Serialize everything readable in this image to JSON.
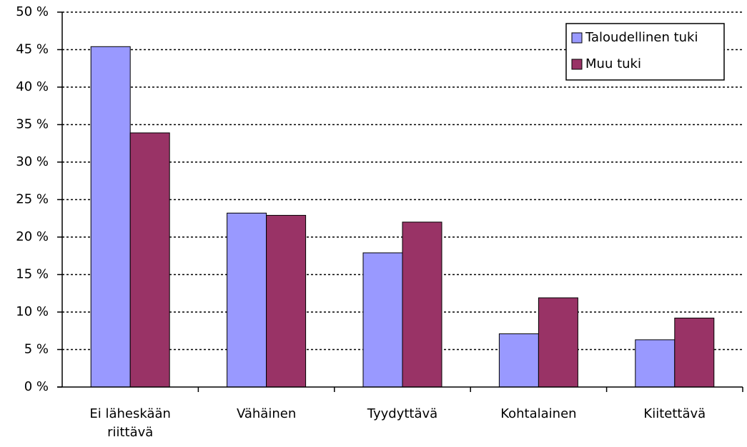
{
  "chart_data": {
    "type": "bar",
    "categories": [
      "Ei läheskään riittävä",
      "Vähäinen",
      "Tyydyttävä",
      "Kohtalainen",
      "Kiitettävä"
    ],
    "series": [
      {
        "name": "Taloudellinen tuki",
        "color": "#9999ff",
        "values": [
          45.4,
          23.2,
          17.9,
          7.1,
          6.3
        ]
      },
      {
        "name": "Muu tuki",
        "color": "#993366",
        "values": [
          33.9,
          22.9,
          22.0,
          11.9,
          9.2
        ]
      }
    ],
    "ylim": [
      0,
      50
    ],
    "yticks": [
      {
        "value": 0,
        "label": "0 %"
      },
      {
        "value": 5,
        "label": "5 %"
      },
      {
        "value": 10,
        "label": "10 %"
      },
      {
        "value": 15,
        "label": "15 %"
      },
      {
        "value": 20,
        "label": "20 %"
      },
      {
        "value": 25,
        "label": "25 %"
      },
      {
        "value": 30,
        "label": "30 %"
      },
      {
        "value": 35,
        "label": "35 %"
      },
      {
        "value": 40,
        "label": "40 %"
      },
      {
        "value": 45,
        "label": "45 %"
      },
      {
        "value": 50,
        "label": "50 %"
      }
    ],
    "grid": true,
    "legend": "upper right"
  }
}
